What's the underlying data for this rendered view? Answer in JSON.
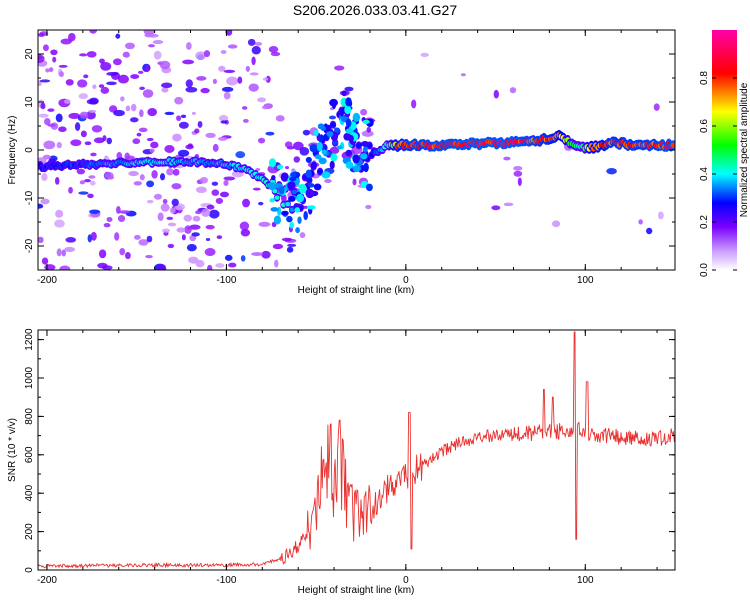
{
  "title": "S206.2026.033.03.41.G27",
  "colors": {
    "snr_line": "#e8312f",
    "frame": "#000000",
    "colormap": [
      "#ffffff",
      "#8a00ff",
      "#0000ff",
      "#00ffff",
      "#00ff00",
      "#ffff00",
      "#ff0000",
      "#ff00aa"
    ]
  },
  "chart_data": [
    {
      "type": "heatmap",
      "title": "S206.2026.033.03.41.G27",
      "xlabel": "Height of straight line (km)",
      "ylabel": "Frequency (Hz)",
      "xlim": [
        -205,
        150
      ],
      "ylim": [
        -25,
        25
      ],
      "x_ticks": [
        -200,
        -100,
        0,
        100
      ],
      "x_tick_labels": [
        "-200",
        "-100",
        "0",
        "100"
      ],
      "y_ticks": [
        -20,
        -10,
        0,
        10,
        20
      ],
      "y_tick_labels": [
        "-20",
        "-10",
        "0",
        "10",
        "20"
      ],
      "colorbar": {
        "label": "Normalized spectral amplitude",
        "range": [
          0,
          1
        ],
        "ticks": [
          0.0,
          0.2,
          0.4,
          0.6,
          0.8
        ],
        "tick_labels": [
          "0.0",
          "0.2",
          "0.4",
          "0.6",
          "0.8"
        ]
      },
      "ridge": {
        "x": [
          -205,
          -180,
          -160,
          -140,
          -120,
          -100,
          -90,
          -80,
          -70,
          -60,
          -50,
          -42,
          -36,
          -30,
          -25,
          -20,
          -15,
          -10,
          -5,
          0,
          10,
          30,
          60,
          75,
          85,
          92,
          98,
          103,
          115,
          130,
          150
        ],
        "freq": [
          -3.5,
          -3.0,
          -2.8,
          -2.5,
          -2.5,
          -3.0,
          -4.0,
          -6.0,
          -9.0,
          -11.0,
          -3.0,
          2.0,
          6.0,
          3.0,
          0.0,
          -1.0,
          0.0,
          1.0,
          1.0,
          1.0,
          1.0,
          1.2,
          1.5,
          2.0,
          3.0,
          1.5,
          0.5,
          0.5,
          1.5,
          1.0,
          1.0
        ],
        "amplitude": [
          0.3,
          0.35,
          0.4,
          0.45,
          0.4,
          0.4,
          0.45,
          0.5,
          0.5,
          0.3,
          0.3,
          0.35,
          0.3,
          0.3,
          0.35,
          0.3,
          0.4,
          0.5,
          0.85,
          0.9,
          0.92,
          0.95,
          0.95,
          0.9,
          0.85,
          0.6,
          0.5,
          0.8,
          0.9,
          0.9,
          0.95
        ]
      }
    },
    {
      "type": "line",
      "xlabel": "Height of straight line (km)",
      "ylabel": "SNR (10 * v/v)",
      "xlim": [
        -205,
        150
      ],
      "ylim": [
        0,
        1250
      ],
      "x_ticks": [
        -200,
        -100,
        0,
        100
      ],
      "x_tick_labels": [
        "-200",
        "-100",
        "0",
        "100"
      ],
      "y_ticks": [
        0,
        200,
        400,
        600,
        800,
        1000,
        1200
      ],
      "y_tick_labels": [
        "0",
        "200",
        "400",
        "600",
        "800",
        "1000",
        "1200"
      ],
      "series": [
        {
          "name": "SNR",
          "x": [
            -205,
            -150,
            -100,
            -80,
            -70,
            -60,
            -55,
            -50,
            -45,
            -40,
            -35,
            -30,
            -25,
            -20,
            -15,
            -10,
            -5,
            0,
            3,
            10,
            20,
            30,
            40,
            50,
            60,
            70,
            80,
            85,
            90,
            95,
            100,
            105,
            110,
            120,
            130,
            140,
            150
          ],
          "values": [
            20,
            25,
            25,
            30,
            60,
            120,
            200,
            300,
            500,
            550,
            450,
            300,
            250,
            300,
            380,
            420,
            480,
            500,
            500,
            550,
            620,
            660,
            690,
            700,
            700,
            710,
            720,
            720,
            730,
            730,
            720,
            700,
            700,
            690,
            690,
            690,
            700
          ]
        }
      ],
      "spikes": [
        {
          "x": -42,
          "value": 760
        },
        {
          "x": -37,
          "value": 780
        },
        {
          "x": 2,
          "value": 820
        },
        {
          "x": 3,
          "value": 110
        },
        {
          "x": 77,
          "value": 940
        },
        {
          "x": 82,
          "value": 900
        },
        {
          "x": 94,
          "value": 1240
        },
        {
          "x": 95,
          "value": 160
        },
        {
          "x": 101,
          "value": 980
        }
      ]
    }
  ]
}
